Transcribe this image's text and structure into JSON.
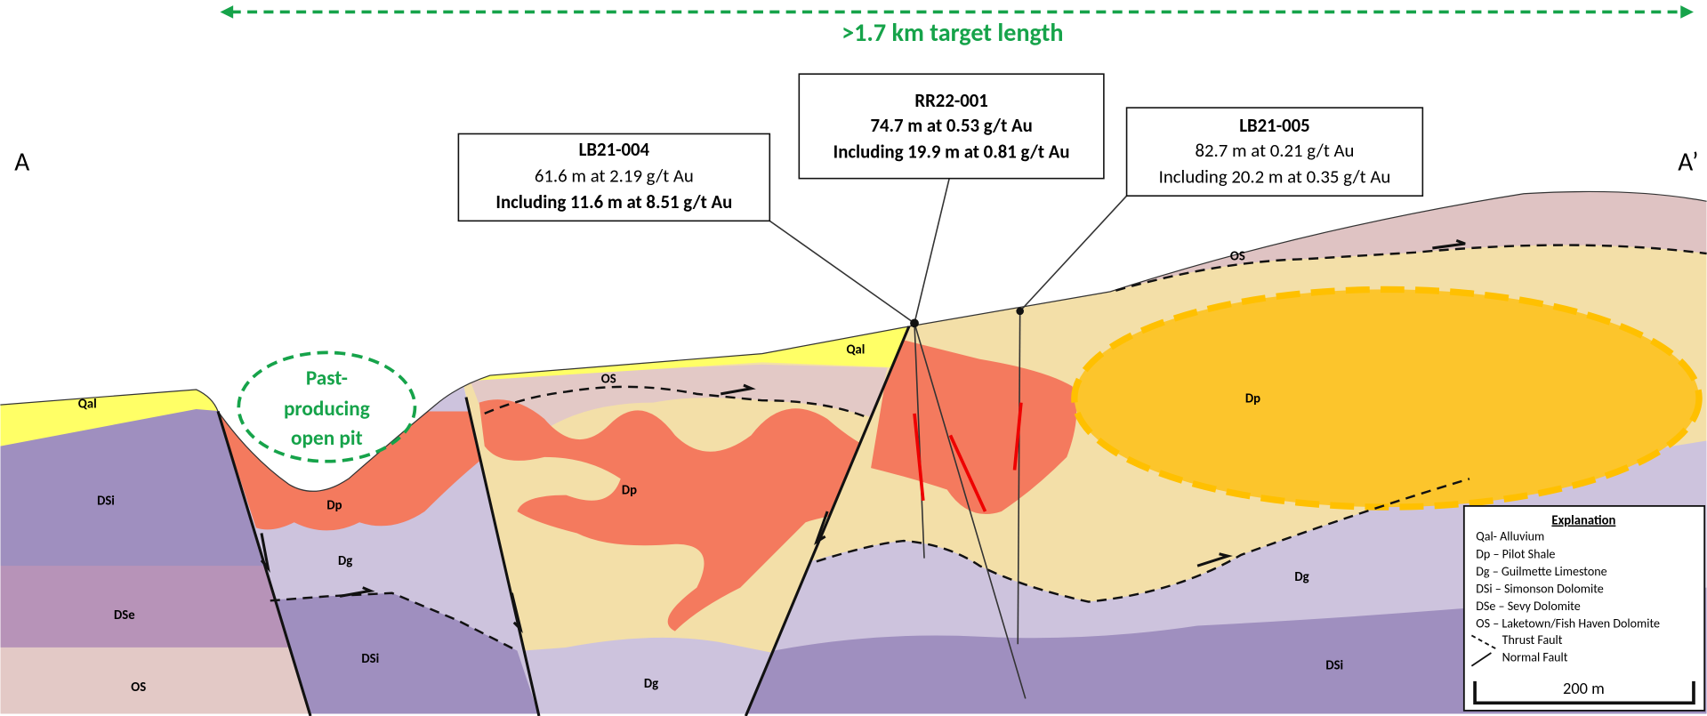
{
  "header": {
    "target_length": ">1.7 km target length"
  },
  "section_labels": {
    "start": "A",
    "end": "A’"
  },
  "past_producing": [
    "Past-",
    "producing",
    "open pit"
  ],
  "drill_holes": [
    {
      "id": "LB21-004",
      "intercept": "61.6 m at 2.19 g/t Au",
      "including": "Including 11.6 m at 8.51 g/t Au"
    },
    {
      "id": "RR22-001",
      "intercept": "74.7 m at 0.53 g/t Au",
      "including": "Including 19.9 m at 0.81 g/t Au"
    },
    {
      "id": "LB21-005",
      "intercept": "82.7 m at 0.21 g/t Au",
      "including": "Including 20.2 m at 0.35 g/t Au"
    }
  ],
  "unit_labels": [
    "Qal",
    "Qal",
    "OS",
    "OS",
    "Dp",
    "Dp",
    "Dp",
    "DSi",
    "DSi",
    "DSi",
    "Dg",
    "Dg",
    "Dg",
    "DSe",
    "OS"
  ],
  "legend": {
    "title": "Explanation",
    "items": [
      "Qal- Alluvium",
      "Dp – Pilot Shale",
      "Dg – Guilmette Limestone",
      "DSi – Simonson Dolomite",
      "DSe – Sevy Dolomite",
      "OS – Laketown/Fish Haven Dolomite",
      "Thrust Fault",
      "Normal Fault"
    ],
    "scale": "200 m"
  }
}
